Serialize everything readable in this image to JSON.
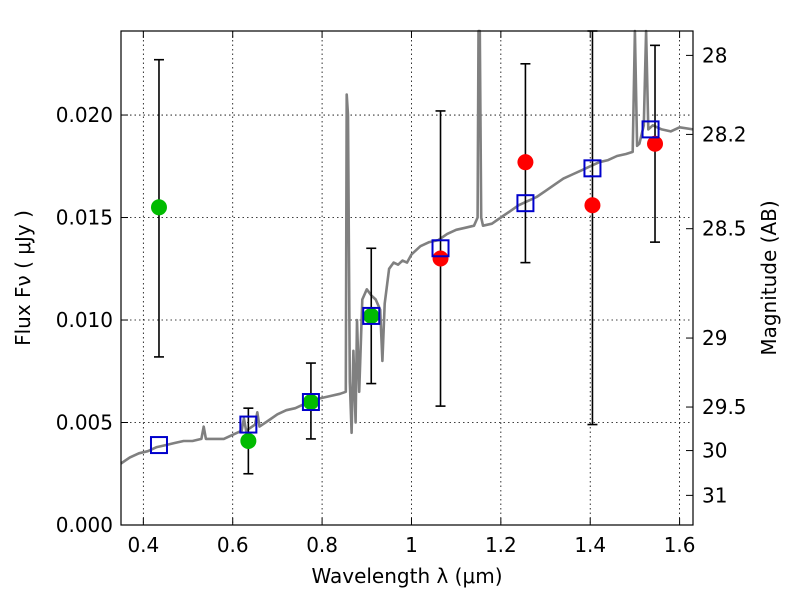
{
  "chart_data": {
    "type": "scatter",
    "xlabel": "Wavelength  λ (μm)",
    "ylabel": "Flux  Fν  ( μJy )",
    "ylabel_right": "Magnitude (AB)",
    "xlim": [
      0.35,
      1.63
    ],
    "ylim": [
      0.0,
      0.0241
    ],
    "x_ticks": [
      {
        "value": 0.4,
        "label": "0.4"
      },
      {
        "value": 0.6,
        "label": "0.6"
      },
      {
        "value": 0.8,
        "label": "0.8"
      },
      {
        "value": 1.0,
        "label": "1"
      },
      {
        "value": 1.2,
        "label": "1.2"
      },
      {
        "value": 1.4,
        "label": "1.4"
      },
      {
        "value": 1.6,
        "label": "1.6"
      }
    ],
    "y_ticks": [
      {
        "value": 0.0,
        "label": "0.000"
      },
      {
        "value": 0.005,
        "label": "0.005"
      },
      {
        "value": 0.01,
        "label": "0.010"
      },
      {
        "value": 0.015,
        "label": "0.015"
      },
      {
        "value": 0.02,
        "label": "0.020"
      }
    ],
    "y_ticks_right": [
      {
        "value": 28,
        "label": "28"
      },
      {
        "value": 28.2,
        "label": "28.2"
      },
      {
        "value": 28.5,
        "label": "28.5"
      },
      {
        "value": 29,
        "label": "29"
      },
      {
        "value": 29.5,
        "label": "29.5"
      },
      {
        "value": 30,
        "label": "30"
      },
      {
        "value": 31,
        "label": "31"
      }
    ],
    "grid": true,
    "colors": {
      "model_spectrum": "#808080",
      "model_photometry": "#0000cc",
      "observed_optical": "#00bb00",
      "observed_nir": "#ff0000",
      "error_bar": "#000000"
    },
    "model_spectrum": [
      [
        0.35,
        0.003
      ],
      [
        0.37,
        0.0033
      ],
      [
        0.39,
        0.0035
      ],
      [
        0.41,
        0.0036
      ],
      [
        0.43,
        0.0038
      ],
      [
        0.45,
        0.0039
      ],
      [
        0.47,
        0.004
      ],
      [
        0.49,
        0.0041
      ],
      [
        0.51,
        0.0041
      ],
      [
        0.53,
        0.0042
      ],
      [
        0.535,
        0.0048
      ],
      [
        0.54,
        0.0042
      ],
      [
        0.56,
        0.0042
      ],
      [
        0.58,
        0.0042
      ],
      [
        0.6,
        0.0044
      ],
      [
        0.62,
        0.0046
      ],
      [
        0.625,
        0.0052
      ],
      [
        0.63,
        0.0046
      ],
      [
        0.65,
        0.0049
      ],
      [
        0.655,
        0.0055
      ],
      [
        0.66,
        0.0048
      ],
      [
        0.68,
        0.0051
      ],
      [
        0.7,
        0.0054
      ],
      [
        0.72,
        0.0056
      ],
      [
        0.74,
        0.0057
      ],
      [
        0.76,
        0.0059
      ],
      [
        0.78,
        0.0061
      ],
      [
        0.8,
        0.0062
      ],
      [
        0.82,
        0.0063
      ],
      [
        0.84,
        0.0064
      ],
      [
        0.853,
        0.0065
      ],
      [
        0.855,
        0.021
      ],
      [
        0.858,
        0.02
      ],
      [
        0.862,
        0.007
      ],
      [
        0.866,
        0.0045
      ],
      [
        0.87,
        0.0085
      ],
      [
        0.875,
        0.005
      ],
      [
        0.878,
        0.01
      ],
      [
        0.883,
        0.0065
      ],
      [
        0.89,
        0.011
      ],
      [
        0.9,
        0.0115
      ],
      [
        0.91,
        0.0112
      ],
      [
        0.92,
        0.011
      ],
      [
        0.93,
        0.0105
      ],
      [
        0.935,
        0.008
      ],
      [
        0.94,
        0.0108
      ],
      [
        0.95,
        0.0125
      ],
      [
        0.96,
        0.0128
      ],
      [
        0.97,
        0.0127
      ],
      [
        0.98,
        0.0129
      ],
      [
        0.99,
        0.0128
      ],
      [
        1.0,
        0.0132
      ],
      [
        1.02,
        0.0136
      ],
      [
        1.04,
        0.0138
      ],
      [
        1.06,
        0.0139
      ],
      [
        1.08,
        0.0142
      ],
      [
        1.1,
        0.0144
      ],
      [
        1.12,
        0.0145
      ],
      [
        1.14,
        0.0146
      ],
      [
        1.148,
        0.015
      ],
      [
        1.15,
        0.0241
      ],
      [
        1.153,
        0.0241
      ],
      [
        1.156,
        0.015
      ],
      [
        1.16,
        0.0146
      ],
      [
        1.18,
        0.0147
      ],
      [
        1.2,
        0.015
      ],
      [
        1.22,
        0.0153
      ],
      [
        1.24,
        0.0156
      ],
      [
        1.26,
        0.0158
      ],
      [
        1.28,
        0.016
      ],
      [
        1.3,
        0.0163
      ],
      [
        1.32,
        0.0166
      ],
      [
        1.34,
        0.0169
      ],
      [
        1.36,
        0.0171
      ],
      [
        1.38,
        0.0173
      ],
      [
        1.4,
        0.0175
      ],
      [
        1.42,
        0.0177
      ],
      [
        1.44,
        0.0178
      ],
      [
        1.46,
        0.018
      ],
      [
        1.48,
        0.0181
      ],
      [
        1.495,
        0.0182
      ],
      [
        1.5,
        0.0241
      ],
      [
        1.505,
        0.0185
      ],
      [
        1.51,
        0.0186
      ],
      [
        1.52,
        0.0195
      ],
      [
        1.525,
        0.0241
      ],
      [
        1.53,
        0.0193
      ],
      [
        1.54,
        0.0195
      ],
      [
        1.56,
        0.0193
      ],
      [
        1.58,
        0.0192
      ],
      [
        1.6,
        0.0194
      ],
      [
        1.63,
        0.0193
      ]
    ],
    "model_photometry": [
      {
        "x": 0.435,
        "y": 0.0039
      },
      {
        "x": 0.635,
        "y": 0.0049
      },
      {
        "x": 0.775,
        "y": 0.006
      },
      {
        "x": 0.91,
        "y": 0.0102
      },
      {
        "x": 1.065,
        "y": 0.0135
      },
      {
        "x": 1.255,
        "y": 0.0157
      },
      {
        "x": 1.405,
        "y": 0.0174
      },
      {
        "x": 1.535,
        "y": 0.0193
      }
    ],
    "observed_optical": [
      {
        "x": 0.435,
        "y": 0.0155,
        "ylow": 0.0082,
        "yhigh": 0.0227
      },
      {
        "x": 0.635,
        "y": 0.0041,
        "ylow": 0.0025,
        "yhigh": 0.0057
      },
      {
        "x": 0.775,
        "y": 0.006,
        "ylow": 0.0042,
        "yhigh": 0.0079
      },
      {
        "x": 0.91,
        "y": 0.0102,
        "ylow": 0.0069,
        "yhigh": 0.0135
      }
    ],
    "observed_nir": [
      {
        "x": 1.065,
        "y": 0.013,
        "ylow": 0.0058,
        "yhigh": 0.0202
      },
      {
        "x": 1.255,
        "y": 0.0177,
        "ylow": 0.0128,
        "yhigh": 0.0225
      },
      {
        "x": 1.405,
        "y": 0.0156,
        "ylow": 0.0049,
        "yhigh": 0.0241
      },
      {
        "x": 1.545,
        "y": 0.0186,
        "ylow": 0.0138,
        "yhigh": 0.0234
      }
    ]
  }
}
